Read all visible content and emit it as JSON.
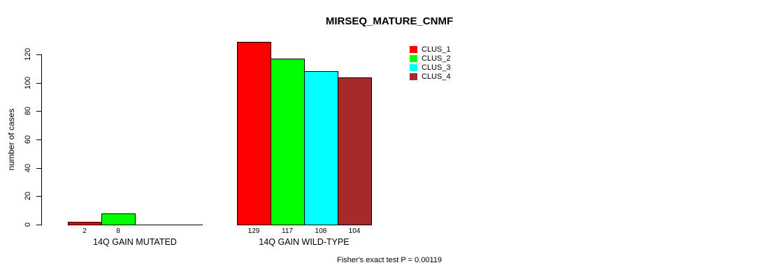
{
  "page": {
    "title": "MIRSEQ_MATURE_CNMF",
    "y_axis_label": "number of cases",
    "footer_note": "Fisher's exact test P = 0.00119"
  },
  "chart_data": {
    "type": "bar",
    "title": "MIRSEQ_MATURE_CNMF",
    "xlabel": "",
    "ylabel": "number of cases",
    "categories": [
      "14Q GAIN MUTATED",
      "14Q GAIN WILD-TYPE"
    ],
    "series": [
      {
        "name": "CLUS_1",
        "color": "#FF0000",
        "values": [
          2,
          129
        ]
      },
      {
        "name": "CLUS_2",
        "color": "#00FF00",
        "values": [
          8,
          117
        ]
      },
      {
        "name": "CLUS_3",
        "color": "#00FFFF",
        "values": [
          0,
          108
        ]
      },
      {
        "name": "CLUS_4",
        "color": "#A52A2A",
        "values": [
          0,
          104
        ]
      }
    ],
    "bar_value_labels": [
      [
        "2",
        "8",
        "",
        ""
      ],
      [
        "129",
        "117",
        "108",
        "104"
      ]
    ],
    "yticks": [
      0,
      20,
      40,
      60,
      80,
      100,
      120
    ],
    "ylim": [
      0,
      130
    ],
    "grid": false,
    "legend_position": "top-right",
    "legend_entries": [
      "CLUS_1",
      "CLUS_2",
      "CLUS_3",
      "CLUS_4"
    ],
    "annotation": "Fisher's exact test P = 0.00119"
  }
}
